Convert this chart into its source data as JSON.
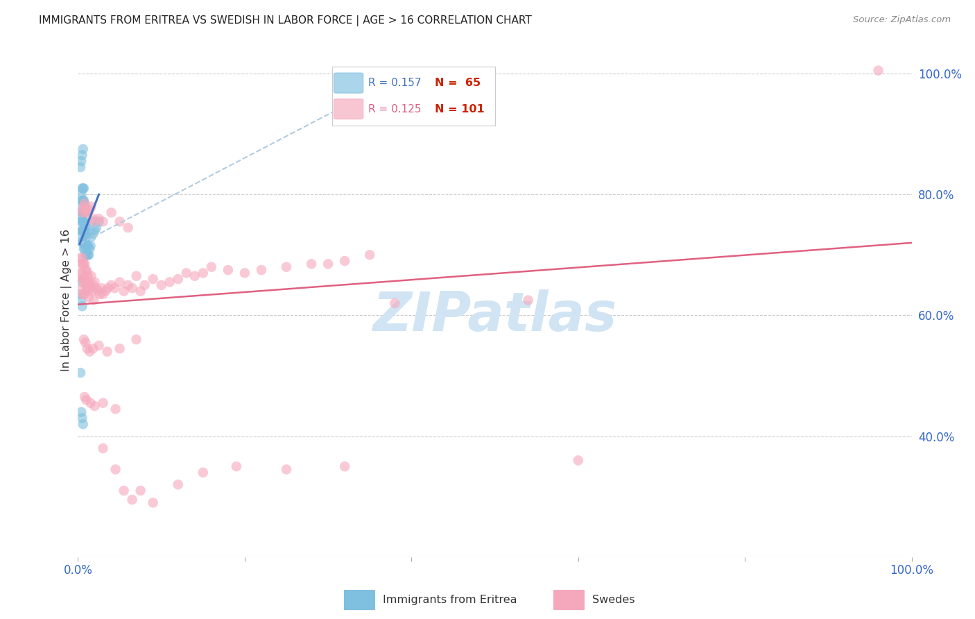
{
  "title": "IMMIGRANTS FROM ERITREA VS SWEDISH IN LABOR FORCE | AGE > 16 CORRELATION CHART",
  "source": "Source: ZipAtlas.com",
  "ylabel": "In Labor Force | Age > 16",
  "blue_color": "#7fbfdf",
  "pink_color": "#f5a8bc",
  "blue_line_color": "#4472c4",
  "pink_line_color": "#e06080",
  "dashed_line_color": "#b0cce0",
  "watermark": "ZIPatlas",
  "watermark_color": "#d0e4f4",
  "title_color": "#222222",
  "tick_color": "#3366cc",
  "grid_color": "#cccccc",
  "background_color": "#ffffff",
  "xlim": [
    0.0,
    1.0
  ],
  "ylim": [
    0.2,
    1.05
  ],
  "yticks": [
    0.4,
    0.6,
    0.8,
    1.0
  ],
  "ytick_labels": [
    "40.0%",
    "60.0%",
    "80.0%",
    "100.0%"
  ],
  "xticks": [
    0.0,
    0.2,
    0.4,
    0.6,
    0.8,
    1.0
  ],
  "xtick_labels": [
    "0.0%",
    "",
    "",
    "",
    "",
    "100.0%"
  ],
  "blue_scatter_x": [
    0.003,
    0.003,
    0.004,
    0.004,
    0.004,
    0.004,
    0.005,
    0.005,
    0.005,
    0.005,
    0.005,
    0.005,
    0.006,
    0.006,
    0.006,
    0.006,
    0.006,
    0.006,
    0.007,
    0.007,
    0.007,
    0.007,
    0.007,
    0.007,
    0.007,
    0.008,
    0.008,
    0.008,
    0.008,
    0.008,
    0.009,
    0.009,
    0.009,
    0.009,
    0.01,
    0.01,
    0.01,
    0.01,
    0.011,
    0.011,
    0.012,
    0.012,
    0.013,
    0.014,
    0.015,
    0.016,
    0.018,
    0.02,
    0.022,
    0.025,
    0.003,
    0.004,
    0.005,
    0.006,
    0.003,
    0.004,
    0.005,
    0.004,
    0.005,
    0.006,
    0.003,
    0.005,
    0.008,
    0.016
  ],
  "blue_scatter_y": [
    0.73,
    0.755,
    0.74,
    0.76,
    0.78,
    0.8,
    0.72,
    0.74,
    0.755,
    0.77,
    0.79,
    0.81,
    0.72,
    0.74,
    0.755,
    0.77,
    0.79,
    0.81,
    0.71,
    0.725,
    0.74,
    0.755,
    0.77,
    0.79,
    0.81,
    0.71,
    0.725,
    0.74,
    0.755,
    0.77,
    0.7,
    0.715,
    0.73,
    0.745,
    0.7,
    0.715,
    0.73,
    0.745,
    0.7,
    0.715,
    0.7,
    0.715,
    0.7,
    0.71,
    0.715,
    0.73,
    0.735,
    0.74,
    0.745,
    0.755,
    0.845,
    0.855,
    0.865,
    0.875,
    0.635,
    0.625,
    0.615,
    0.44,
    0.43,
    0.42,
    0.505,
    0.655,
    0.785,
    0.755
  ],
  "pink_scatter_x": [
    0.003,
    0.003,
    0.004,
    0.004,
    0.005,
    0.005,
    0.005,
    0.006,
    0.006,
    0.006,
    0.007,
    0.007,
    0.007,
    0.008,
    0.008,
    0.008,
    0.009,
    0.009,
    0.01,
    0.01,
    0.011,
    0.011,
    0.012,
    0.012,
    0.013,
    0.013,
    0.014,
    0.015,
    0.016,
    0.017,
    0.018,
    0.019,
    0.02,
    0.022,
    0.024,
    0.026,
    0.028,
    0.03,
    0.033,
    0.036,
    0.04,
    0.044,
    0.05,
    0.055,
    0.06,
    0.065,
    0.07,
    0.075,
    0.08,
    0.09,
    0.1,
    0.11,
    0.12,
    0.13,
    0.14,
    0.15,
    0.16,
    0.18,
    0.2,
    0.22,
    0.25,
    0.28,
    0.3,
    0.32,
    0.35,
    0.005,
    0.006,
    0.007,
    0.008,
    0.009,
    0.01,
    0.012,
    0.014,
    0.016,
    0.018,
    0.02,
    0.025,
    0.03,
    0.04,
    0.05,
    0.06,
    0.007,
    0.009,
    0.011,
    0.014,
    0.018,
    0.025,
    0.035,
    0.05,
    0.07,
    0.008,
    0.01,
    0.015,
    0.02,
    0.03,
    0.045,
    0.38,
    0.96
  ],
  "pink_scatter_y": [
    0.695,
    0.67,
    0.685,
    0.66,
    0.695,
    0.67,
    0.645,
    0.685,
    0.66,
    0.635,
    0.685,
    0.66,
    0.635,
    0.685,
    0.66,
    0.635,
    0.675,
    0.65,
    0.675,
    0.65,
    0.67,
    0.645,
    0.665,
    0.64,
    0.655,
    0.63,
    0.65,
    0.645,
    0.665,
    0.64,
    0.65,
    0.625,
    0.655,
    0.645,
    0.64,
    0.635,
    0.645,
    0.635,
    0.64,
    0.645,
    0.65,
    0.645,
    0.655,
    0.64,
    0.65,
    0.645,
    0.665,
    0.64,
    0.65,
    0.66,
    0.65,
    0.655,
    0.66,
    0.67,
    0.665,
    0.67,
    0.68,
    0.675,
    0.67,
    0.675,
    0.68,
    0.685,
    0.685,
    0.69,
    0.7,
    0.77,
    0.775,
    0.78,
    0.785,
    0.77,
    0.775,
    0.77,
    0.775,
    0.78,
    0.76,
    0.755,
    0.76,
    0.755,
    0.77,
    0.755,
    0.745,
    0.56,
    0.555,
    0.545,
    0.54,
    0.545,
    0.55,
    0.54,
    0.545,
    0.56,
    0.465,
    0.46,
    0.455,
    0.45,
    0.455,
    0.445,
    0.62,
    1.005
  ],
  "pink_scatter_extra_x": [
    0.03,
    0.045,
    0.055,
    0.065,
    0.075,
    0.09,
    0.12,
    0.15,
    0.19,
    0.25,
    0.32,
    0.54,
    0.6
  ],
  "pink_scatter_extra_y": [
    0.38,
    0.345,
    0.31,
    0.295,
    0.31,
    0.29,
    0.32,
    0.34,
    0.35,
    0.345,
    0.35,
    0.625,
    0.36
  ],
  "blue_trendline": {
    "x": [
      0.002,
      0.025
    ],
    "y": [
      0.718,
      0.8
    ]
  },
  "blue_dashed_line": {
    "x": [
      0.002,
      0.38
    ],
    "y": [
      0.718,
      0.99
    ]
  },
  "pink_trendline": {
    "x": [
      0.0,
      1.0
    ],
    "y": [
      0.618,
      0.72
    ]
  }
}
